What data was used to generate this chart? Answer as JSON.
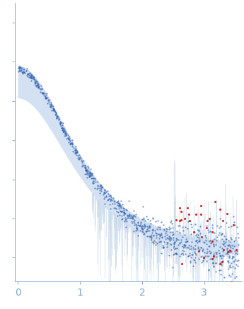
{
  "title": "",
  "xlabel": "",
  "ylabel": "",
  "xlim": [
    -0.05,
    3.6
  ],
  "ylim": [
    -0.6,
    6.5
  ],
  "x_ticks": [
    0,
    1,
    2,
    3
  ],
  "background_color": "#ffffff",
  "band_color": "#c5d8ee",
  "band_edge_color": "#afc8e0",
  "blue_dot_color": "#3060b0",
  "red_dot_color": "#cc1111",
  "n_band_pts": 2000,
  "n_data_pts": 900,
  "seed": 7
}
